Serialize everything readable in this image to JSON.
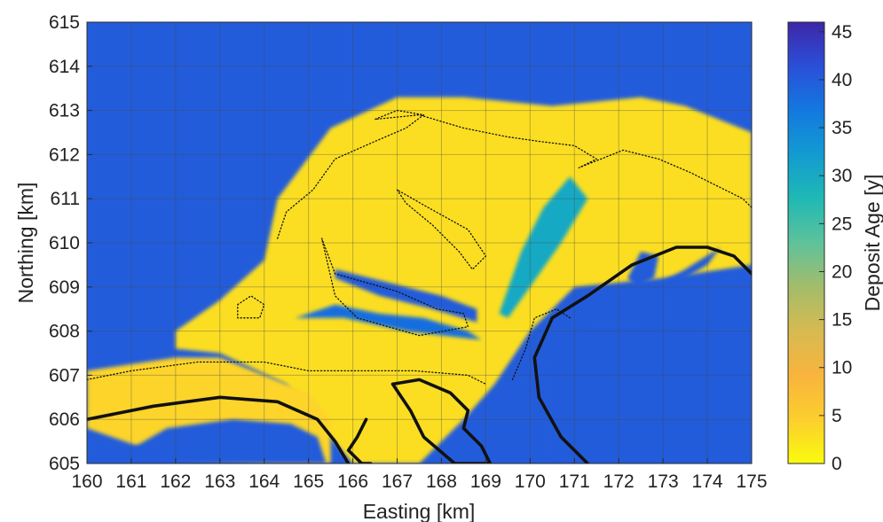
{
  "chart_data": {
    "type": "heatmap",
    "xlabel": "Easting [km]",
    "ylabel": "Northing [km]",
    "xlim": [
      160,
      175
    ],
    "ylim": [
      605,
      615
    ],
    "x_ticks": [
      "160",
      "161",
      "162",
      "163",
      "164",
      "165",
      "166",
      "167",
      "168",
      "169",
      "170",
      "171",
      "172",
      "173",
      "174",
      "175"
    ],
    "y_ticks": [
      "605",
      "606",
      "607",
      "608",
      "609",
      "610",
      "611",
      "612",
      "613",
      "614",
      "615"
    ],
    "grid": true,
    "colorbar": {
      "label": "Deposit Age [y]",
      "range": [
        0,
        46
      ],
      "ticks": [
        "0",
        "5",
        "10",
        "15",
        "20",
        "25",
        "30",
        "35",
        "40",
        "45"
      ],
      "colors": [
        "#f9fb0e",
        "#fcce2e",
        "#f8b43d",
        "#d7ba51",
        "#a3bd6a",
        "#5ec29b",
        "#1fb9b4",
        "#139bd1",
        "#1379e0",
        "#2a4fd8",
        "#3e26a8"
      ]
    },
    "series": [
      {
        "name": "",
        "kind": "plume",
        "value": 3,
        "x": [
          162.0,
          163.0,
          164.0,
          164.3,
          165.5,
          167.0,
          168.5,
          170.5,
          172.5,
          173.5,
          175.0,
          175.0,
          173.0,
          171.0,
          170.0,
          169.2,
          168.5,
          167.5,
          166.0,
          164.5,
          163.0,
          162.0,
          162.0
        ],
        "y": [
          608.0,
          608.7,
          609.6,
          611.0,
          612.6,
          613.3,
          613.3,
          613.1,
          613.3,
          613.1,
          612.5,
          609.5,
          609.2,
          609.0,
          608.0,
          606.8,
          606.0,
          605.0,
          605.0,
          606.8,
          607.5,
          607.6,
          608.0
        ]
      },
      {
        "name": "",
        "kind": "shallow",
        "value": 4,
        "x": [
          160.0,
          162.0,
          163.0,
          164.0,
          165.0,
          165.5,
          165.5,
          164.0,
          162.0,
          160.0,
          160.0
        ],
        "y": [
          607.1,
          607.4,
          607.4,
          607.0,
          606.6,
          606.0,
          605.0,
          605.0,
          605.1,
          605.8,
          607.1
        ]
      },
      {
        "name": "",
        "kind": "channel",
        "value": 30,
        "x": [
          169.3,
          169.8,
          170.3,
          170.9,
          171.3,
          170.7,
          170.0,
          169.5,
          169.3
        ],
        "y": [
          608.4,
          609.8,
          610.8,
          611.5,
          611.0,
          610.0,
          609.0,
          608.3,
          608.4
        ]
      },
      {
        "name": "",
        "kind": "channel",
        "value": 38,
        "x": [
          164.7,
          165.6,
          166.6,
          167.6,
          168.6,
          168.9,
          167.2,
          165.8,
          164.7
        ],
        "y": [
          608.3,
          608.6,
          608.4,
          608.3,
          608.0,
          607.8,
          608.0,
          608.3,
          608.3
        ]
      },
      {
        "name": "",
        "kind": "channel",
        "value": 40,
        "x": [
          165.6,
          166.8,
          168.0,
          168.8,
          168.8,
          167.8,
          166.6,
          165.6,
          165.6
        ],
        "y": [
          609.4,
          609.1,
          608.8,
          608.5,
          608.2,
          608.5,
          608.8,
          609.2,
          609.4
        ]
      },
      {
        "name": "",
        "kind": "channel",
        "value": 40,
        "x": [
          171.0,
          172.4,
          173.5,
          174.3,
          174.0,
          173.0,
          171.5,
          171.0
        ],
        "y": [
          608.4,
          608.8,
          609.4,
          609.9,
          609.5,
          608.9,
          608.4,
          608.4
        ]
      },
      {
        "name": "",
        "kind": "blob",
        "value": 40,
        "x": [
          172.2,
          172.5,
          172.9,
          172.8,
          172.4,
          172.2
        ],
        "y": [
          609.2,
          609.8,
          609.7,
          609.2,
          609.0,
          609.2
        ]
      },
      {
        "name": "",
        "kind": "shoal",
        "value": 40,
        "x": [
          170.4,
          171.3,
          172.5,
          173.8,
          175.0,
          175.0,
          170.4,
          170.4
        ],
        "y": [
          607.3,
          608.2,
          608.2,
          608.1,
          608.1,
          605.0,
          605.0,
          607.3
        ]
      },
      {
        "name": "",
        "kind": "shoal",
        "value": 40,
        "x": [
          160.6,
          161.8,
          163.3,
          164.6,
          165.2,
          165.4,
          164.5,
          162.8,
          161.0,
          160.6
        ],
        "y": [
          605.1,
          605.8,
          606.0,
          605.9,
          605.6,
          605.0,
          605.0,
          605.0,
          605.0,
          605.1
        ]
      },
      {
        "name": "",
        "kind": "shoreline",
        "x": [
          160.0,
          161.5,
          163.0,
          164.3,
          165.2,
          165.6,
          165.9
        ],
        "y": [
          606.0,
          606.3,
          606.5,
          606.4,
          606.0,
          605.5,
          605.0
        ]
      },
      {
        "name": "",
        "kind": "shoreline",
        "x": [
          171.3,
          170.7,
          170.2,
          170.1,
          170.5,
          171.3,
          172.3,
          173.3,
          174.0,
          174.6,
          175.0
        ],
        "y": [
          605.0,
          605.6,
          606.5,
          607.4,
          608.3,
          608.8,
          609.5,
          609.9,
          609.9,
          609.7,
          609.3
        ]
      },
      {
        "name": "",
        "kind": "shoreline",
        "x": [
          166.9,
          167.5,
          168.2,
          168.6,
          168.5,
          168.9,
          169.1,
          168.3,
          167.6,
          167.3,
          166.9
        ],
        "y": [
          606.8,
          606.9,
          606.6,
          606.2,
          605.8,
          605.4,
          605.0,
          605.0,
          605.6,
          606.2,
          606.8
        ]
      },
      {
        "name": "",
        "kind": "shoreline",
        "x": [
          166.3,
          166.1,
          165.9,
          166.2,
          166.4
        ],
        "y": [
          606.0,
          605.6,
          605.3,
          605.0,
          605.0
        ]
      },
      {
        "name": "",
        "kind": "contour",
        "x": [
          164.3,
          164.5,
          165.1,
          165.6,
          166.5,
          167.2,
          167.6,
          167.0,
          166.5,
          167.5,
          168.5,
          169.5,
          170.2,
          171.0,
          171.5,
          171.1,
          172.1,
          172.9,
          173.6,
          174.2,
          174.8,
          175.0
        ],
        "y": [
          610.1,
          610.7,
          611.2,
          611.9,
          612.3,
          612.6,
          612.9,
          613.0,
          612.8,
          612.9,
          612.6,
          612.4,
          612.3,
          612.2,
          611.9,
          611.7,
          612.1,
          611.9,
          611.6,
          611.3,
          611.0,
          610.8
        ]
      },
      {
        "name": "",
        "kind": "contour",
        "x": [
          163.4,
          163.7,
          164.0,
          163.9,
          163.4,
          163.4
        ],
        "y": [
          608.6,
          608.8,
          608.6,
          608.3,
          608.3,
          608.6
        ]
      },
      {
        "name": "",
        "kind": "contour",
        "x": [
          165.3,
          165.6,
          167.0,
          167.9,
          168.5,
          168.6,
          167.5,
          166.1,
          165.6,
          165.3
        ],
        "y": [
          610.1,
          609.3,
          608.9,
          608.5,
          608.4,
          608.1,
          607.9,
          608.3,
          608.8,
          610.1
        ]
      },
      {
        "name": "",
        "kind": "contour",
        "x": [
          167.0,
          167.2,
          167.8,
          168.4,
          168.7,
          169.0,
          168.6,
          167.7,
          167.0
        ],
        "y": [
          611.2,
          610.9,
          610.4,
          609.8,
          609.4,
          609.7,
          610.3,
          610.8,
          611.2
        ]
      },
      {
        "name": "",
        "kind": "contour",
        "x": [
          160.0,
          161.0,
          162.5,
          164.0,
          165.0,
          166.1,
          167.4,
          168.6,
          169.0
        ],
        "y": [
          606.9,
          607.1,
          607.3,
          607.3,
          607.1,
          607.1,
          607.1,
          607.0,
          606.8
        ]
      },
      {
        "name": "",
        "kind": "contour",
        "x": [
          169.6,
          169.9,
          170.1,
          170.6,
          170.9
        ],
        "y": [
          606.9,
          607.6,
          608.3,
          608.5,
          608.3
        ]
      }
    ]
  }
}
